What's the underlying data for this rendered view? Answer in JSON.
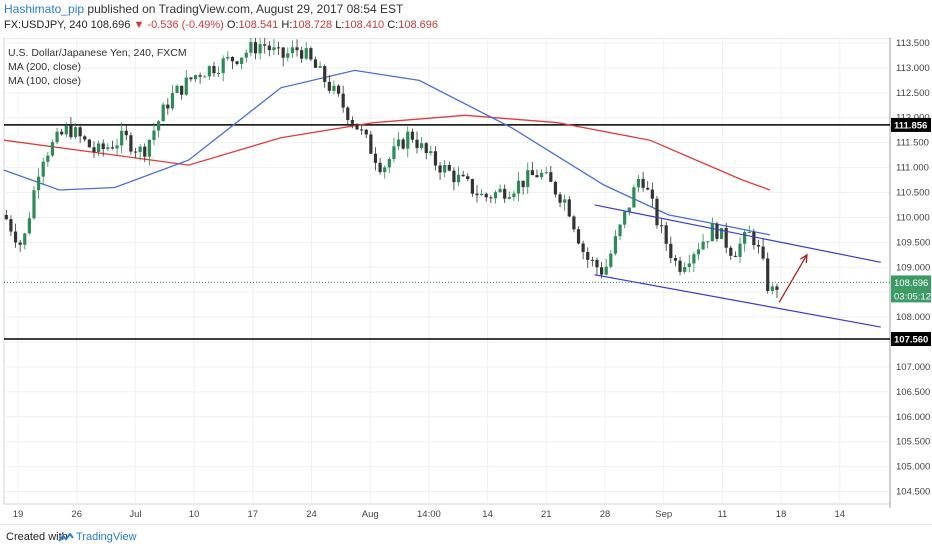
{
  "header": {
    "author": "Hashimato_pip",
    "published_text": "published on TradingView.com, August 29, 2017 08:54 EST",
    "symbol": "FX:USDJPY, 240",
    "last": "108.696",
    "change": "-0.536 (-0.49%)",
    "o_label": "O:",
    "o_value": "108.541",
    "h_label": "H:",
    "h_value": "108.728",
    "l_label": "L:",
    "l_value": "108.410",
    "c_label": "C:",
    "c_value": "108.696"
  },
  "legend": {
    "title": "U.S. Dollar/Japanese Yen, 240, FXCM",
    "ma200": "MA (200, close)",
    "ma100": "MA (100, close)"
  },
  "footer": {
    "created": "Created with",
    "brand": "TradingView"
  },
  "colors": {
    "up": "#2e8b57",
    "down": "#333333",
    "ma200": "#e23b3b",
    "ma100": "#4a6fd6",
    "channel": "#3a3ad6",
    "arrow": "#b11f1f",
    "level": "#000000"
  },
  "chart_data": {
    "type": "line",
    "title": "U.S. Dollar/Japanese Yen, 240, FXCM",
    "xlabel": "",
    "ylabel": "",
    "ylim": [
      104.25,
      113.6
    ],
    "y_ticks": [
      "113.500",
      "113.000",
      "112.500",
      "112.000",
      "111.500",
      "111.000",
      "110.500",
      "110.000",
      "109.500",
      "109.000",
      "108.500",
      "108.000",
      "107.500",
      "107.000",
      "106.500",
      "106.000",
      "105.500",
      "105.000",
      "104.500"
    ],
    "x_tick_labels": [
      "19",
      "26",
      "Jul",
      "10",
      "17",
      "24",
      "Aug",
      "14:00",
      "14",
      "21",
      "28",
      "Sep",
      "11",
      "18",
      "14"
    ],
    "horizontal_levels": [
      {
        "value": 111.856,
        "label": "111.856"
      },
      {
        "value": 107.56,
        "label": "107.560"
      }
    ],
    "price_axis_badges": [
      {
        "value": 108.696,
        "label": "108.696"
      },
      {
        "label": "03:05:12"
      }
    ],
    "close_path": [
      {
        "x": 0,
        "y": 110.05
      },
      {
        "x": 2,
        "y": 109.4
      },
      {
        "x": 4,
        "y": 111.2
      },
      {
        "x": 7,
        "y": 111.8
      },
      {
        "x": 10,
        "y": 111.3
      },
      {
        "x": 13,
        "y": 111.6
      },
      {
        "x": 15,
        "y": 111.3
      },
      {
        "x": 18,
        "y": 112.4
      },
      {
        "x": 21,
        "y": 112.9
      },
      {
        "x": 25,
        "y": 113.2
      },
      {
        "x": 28,
        "y": 113.5
      },
      {
        "x": 30,
        "y": 113.2
      },
      {
        "x": 32,
        "y": 113.4
      },
      {
        "x": 35,
        "y": 112.7
      },
      {
        "x": 38,
        "y": 111.9
      },
      {
        "x": 41,
        "y": 111.0
      },
      {
        "x": 44,
        "y": 111.7
      },
      {
        "x": 46,
        "y": 111.2
      },
      {
        "x": 49,
        "y": 110.8
      },
      {
        "x": 52,
        "y": 110.4
      },
      {
        "x": 55,
        "y": 110.6
      },
      {
        "x": 58,
        "y": 110.9
      },
      {
        "x": 61,
        "y": 110.3
      },
      {
        "x": 63,
        "y": 109.2
      },
      {
        "x": 65,
        "y": 108.9
      },
      {
        "x": 67,
        "y": 109.9
      },
      {
        "x": 69,
        "y": 110.9
      },
      {
        "x": 71,
        "y": 109.8
      },
      {
        "x": 73,
        "y": 109.0
      },
      {
        "x": 75,
        "y": 109.4
      },
      {
        "x": 77,
        "y": 109.8
      },
      {
        "x": 79,
        "y": 109.3
      },
      {
        "x": 81,
        "y": 109.7
      },
      {
        "x": 82,
        "y": 109.2
      },
      {
        "x": 83,
        "y": 108.45
      },
      {
        "x": 84,
        "y": 108.696
      }
    ],
    "series": [
      {
        "name": "MA (200, close)",
        "points": [
          {
            "x": 0,
            "y": 111.55
          },
          {
            "x": 10,
            "y": 111.3
          },
          {
            "x": 20,
            "y": 111.05
          },
          {
            "x": 30,
            "y": 111.6
          },
          {
            "x": 40,
            "y": 111.9
          },
          {
            "x": 50,
            "y": 112.05
          },
          {
            "x": 60,
            "y": 111.9
          },
          {
            "x": 70,
            "y": 111.55
          },
          {
            "x": 75,
            "y": 111.15
          },
          {
            "x": 80,
            "y": 110.75
          },
          {
            "x": 83,
            "y": 110.55
          }
        ]
      },
      {
        "name": "MA (100, close)",
        "points": [
          {
            "x": 0,
            "y": 110.95
          },
          {
            "x": 6,
            "y": 110.55
          },
          {
            "x": 12,
            "y": 110.6
          },
          {
            "x": 20,
            "y": 111.15
          },
          {
            "x": 30,
            "y": 112.6
          },
          {
            "x": 38,
            "y": 112.95
          },
          {
            "x": 45,
            "y": 112.75
          },
          {
            "x": 55,
            "y": 111.8
          },
          {
            "x": 65,
            "y": 110.65
          },
          {
            "x": 72,
            "y": 110.05
          },
          {
            "x": 79,
            "y": 109.8
          },
          {
            "x": 83,
            "y": 109.65
          }
        ]
      }
    ],
    "channel_lines": [
      {
        "x1": 64,
        "y1": 110.25,
        "x2": 95,
        "y2": 109.1
      },
      {
        "x1": 64,
        "y1": 108.85,
        "x2": 95,
        "y2": 107.8
      }
    ],
    "annotation_arrow": {
      "x1": 84,
      "y1": 108.3,
      "x2": 87,
      "y2": 109.25
    },
    "grid": true,
    "legend_position": "top-left"
  }
}
